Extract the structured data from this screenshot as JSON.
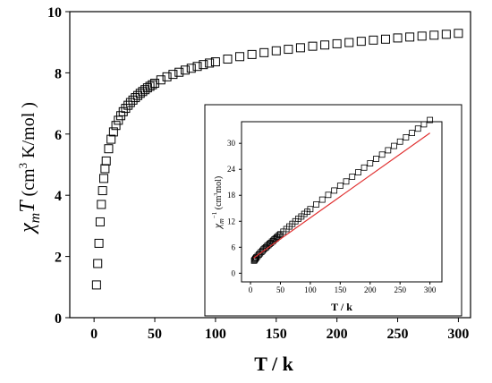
{
  "chart_data": [
    {
      "type": "scatter",
      "role": "main",
      "xlabel": "T / k",
      "ylabel": {
        "prefix": "χ",
        "subscript": "m",
        "variable": "T",
        "unit_open": " (cm",
        "superscript": "3",
        "unit_close": " K/mol )"
      },
      "xlim": [
        -20,
        310
      ],
      "ylim": [
        0,
        10
      ],
      "xticks": [
        0,
        50,
        100,
        150,
        200,
        250,
        300
      ],
      "yticks": [
        0,
        2,
        4,
        6,
        8,
        10
      ],
      "marker": "open-square",
      "color": "#000000",
      "series": [
        {
          "x": [
            2,
            3,
            4,
            5,
            6,
            7,
            8,
            9,
            10,
            12,
            14,
            16,
            18,
            20,
            22,
            24,
            26,
            28,
            30,
            32,
            34,
            36,
            38,
            40,
            42,
            44,
            46,
            48,
            50,
            55,
            60,
            65,
            70,
            75,
            80,
            85,
            90,
            95,
            100,
            110,
            120,
            130,
            140,
            150,
            160,
            170,
            180,
            190,
            200,
            210,
            220,
            230,
            240,
            250,
            260,
            270,
            280,
            290,
            300
          ],
          "y": [
            1.07,
            1.77,
            2.43,
            3.13,
            3.7,
            4.15,
            4.55,
            4.87,
            5.12,
            5.52,
            5.83,
            6.07,
            6.28,
            6.45,
            6.6,
            6.73,
            6.84,
            6.94,
            7.03,
            7.11,
            7.19,
            7.26,
            7.33,
            7.39,
            7.45,
            7.51,
            7.56,
            7.61,
            7.66,
            7.77,
            7.87,
            7.95,
            8.02,
            8.09,
            8.15,
            8.21,
            8.27,
            8.32,
            8.36,
            8.45,
            8.53,
            8.6,
            8.66,
            8.72,
            8.77,
            8.82,
            8.87,
            8.91,
            8.95,
            8.99,
            9.03,
            9.07,
            9.1,
            9.14,
            9.17,
            9.2,
            9.23,
            9.26,
            9.29
          ]
        }
      ]
    },
    {
      "type": "scatter",
      "role": "inset",
      "xlabel": "T / k",
      "ylabel": {
        "prefix": "χ",
        "subscript": "m",
        "superscript": "−1",
        "unit_open": " (cm",
        "unit_sup": "3",
        "unit_close": "mol)"
      },
      "xlim": [
        -15,
        320
      ],
      "ylim": [
        -2,
        35
      ],
      "xticks": [
        0,
        50,
        100,
        150,
        200,
        250,
        300
      ],
      "yticks": [
        0,
        6,
        12,
        18,
        24,
        30
      ],
      "marker": "open-square",
      "color": "#000000",
      "fit_color": "#e03030",
      "series": [
        {
          "x": [
            6,
            7,
            8,
            9,
            10,
            12,
            14,
            16,
            18,
            20,
            22,
            24,
            26,
            28,
            30,
            32,
            34,
            36,
            38,
            40,
            42,
            44,
            46,
            48,
            50,
            55,
            60,
            65,
            70,
            75,
            80,
            85,
            90,
            95,
            100,
            110,
            120,
            130,
            140,
            150,
            160,
            170,
            180,
            190,
            200,
            210,
            220,
            230,
            240,
            250,
            260,
            270,
            280,
            290,
            300
          ],
          "y": [
            2.9,
            3.1,
            3.3,
            3.5,
            3.7,
            4.0,
            4.3,
            4.6,
            4.9,
            5.2,
            5.5,
            5.8,
            6.0,
            6.3,
            6.5,
            6.8,
            7.0,
            7.3,
            7.5,
            7.8,
            8.0,
            8.3,
            8.5,
            8.8,
            9.0,
            9.6,
            10.2,
            10.8,
            11.4,
            12.0,
            12.6,
            13.1,
            13.7,
            14.2,
            14.8,
            15.9,
            17.0,
            18.1,
            19.1,
            20.2,
            21.2,
            22.3,
            23.3,
            24.4,
            25.4,
            26.4,
            27.4,
            28.4,
            29.4,
            30.4,
            31.4,
            32.4,
            33.4,
            34.4,
            35.4
          ]
        }
      ],
      "fit": {
        "x": [
          5,
          300
        ],
        "y": [
          3.5,
          32.4
        ]
      }
    }
  ]
}
